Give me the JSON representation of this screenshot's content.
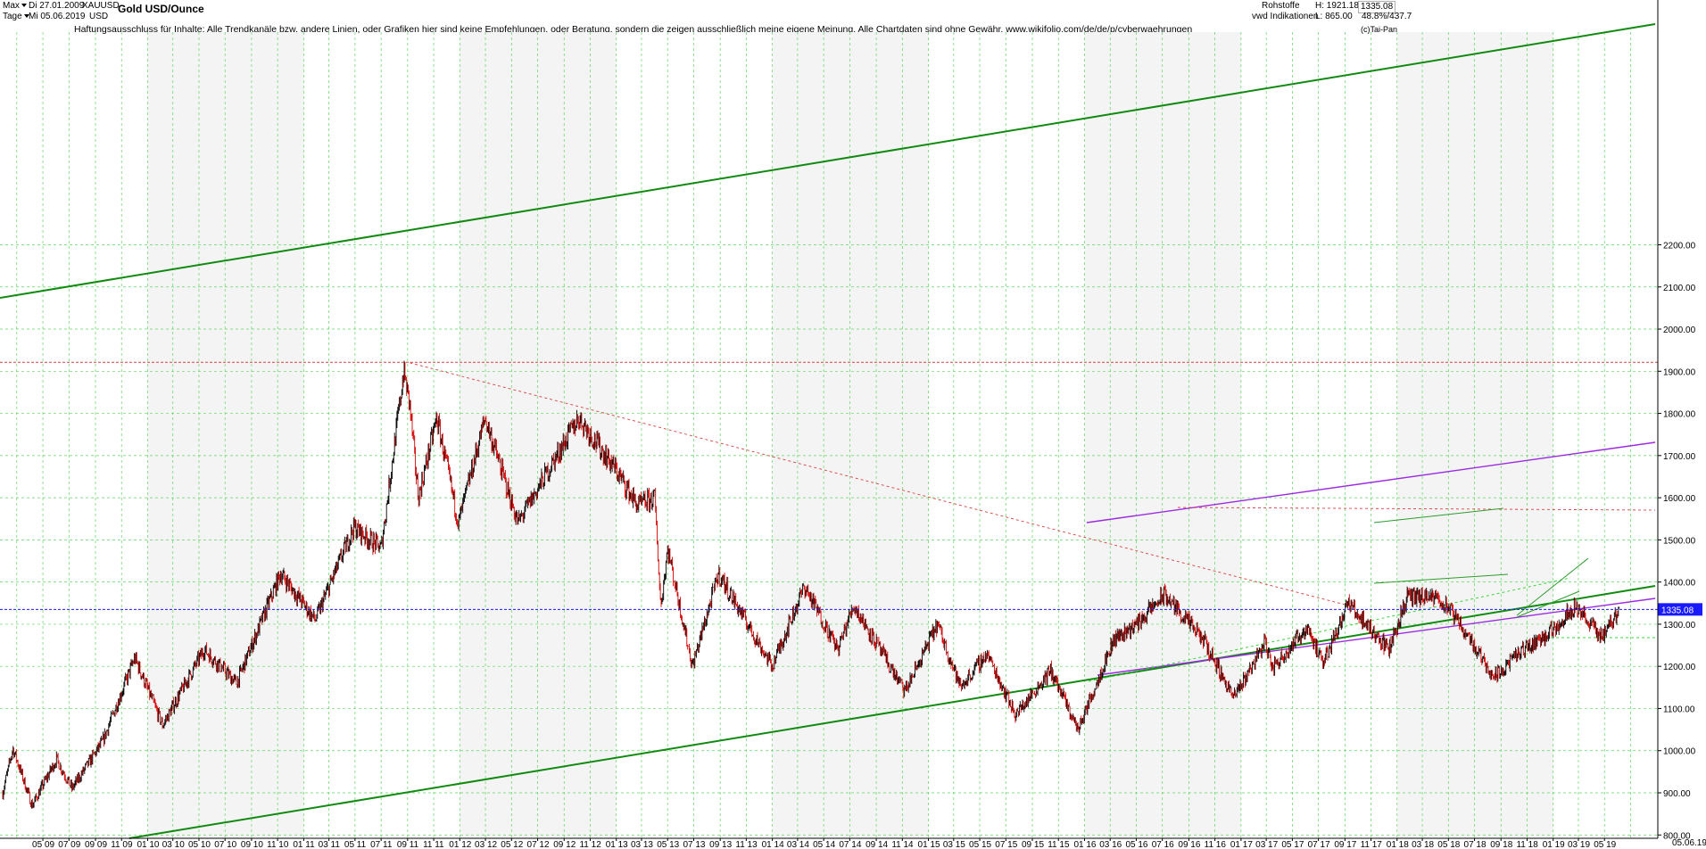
{
  "header": {
    "range_select": "Max",
    "interval_select": "Tage",
    "date_from": "Di 27.01.2009",
    "date_to": "Mi 05.06.2019",
    "symbol": "XAUUSD",
    "currency": "USD",
    "title": "Gold USD/Ounce",
    "category": "Rohstoffe",
    "source": "vwd Indikationen",
    "high": "H: 1921.18",
    "low": "L: 865.00",
    "last": "1335.08",
    "change": "48.8%/437.7",
    "copyright": "(c)Tai-Pan",
    "disclaimer": "Haftungsausschluss für Inhalte: Alle Trendkanäle bzw. andere Linien, oder Grafiken hier sind keine Empfehlungen, oder Beratung, sondern die zeigen ausschließlich meine eigene Meinung. Alle Chartdaten sind ohne Gewähr.  www.wikifolio.com/de/de/p/cyberwaehrungen",
    "end_date": "05.06.19"
  },
  "colors": {
    "price_up": "#000000",
    "price_down": "#d40000",
    "channel_green": "#118a11",
    "channel_purple": "#9b2be0",
    "last_price_line": "#1a1aff",
    "peak_line": "#d84040",
    "grid": "#5cd65c",
    "shade": "#f4f4f4"
  },
  "chart_data": {
    "type": "line",
    "title": "Gold USD/Ounce",
    "ylim": [
      760,
      2400
    ],
    "yticks": [
      800,
      900,
      1000,
      1100,
      1200,
      1300,
      1400,
      1500,
      1600,
      1700,
      1800,
      1900,
      2000,
      2100,
      2200
    ],
    "x_start": "2009-01-27",
    "x_end": "2019-06-05",
    "last_price": 1335.08,
    "peak_level": 1921.18,
    "grid": true,
    "x_tick_labels": [
      "05 09",
      "07 09",
      "09 09",
      "11 09",
      "01 10",
      "03 10",
      "05 10",
      "07 10",
      "09 10",
      "11 10",
      "01 11",
      "03 11",
      "05 11",
      "07 11",
      "09 11",
      "11 11",
      "01 12",
      "03 12",
      "05 12",
      "07 12",
      "09 12",
      "11 12",
      "01 13",
      "03 13",
      "05 13",
      "07 13",
      "09 13",
      "11 13",
      "01 14",
      "03 14",
      "05 14",
      "07 14",
      "09 14",
      "11 14",
      "01 15",
      "03 15",
      "05 15",
      "07 15",
      "09 15",
      "11 15",
      "01 16",
      "03 16",
      "05 16",
      "07 16",
      "09 16",
      "11 16",
      "01 17",
      "03 17",
      "05 17",
      "07 17",
      "09 17",
      "11 17",
      "01 18",
      "03 18",
      "05 18",
      "07 18",
      "09 18",
      "11 18",
      "01 19",
      "03 19",
      "05 19"
    ],
    "series": [
      {
        "x": [
          "2009-01-27",
          "2009-02-20",
          "2009-04-06",
          "2009-06-02",
          "2009-07-08",
          "2009-09-17",
          "2009-12-02",
          "2010-02-05",
          "2010-05-13",
          "2010-07-28",
          "2010-11-08",
          "2011-01-28",
          "2011-04-28",
          "2011-07-01",
          "2011-08-23",
          "2011-09-06",
          "2011-09-26",
          "2011-11-08",
          "2011-12-29",
          "2012-02-29",
          "2012-05-16",
          "2012-10-05",
          "2013-01-04",
          "2013-02-20",
          "2013-04-01",
          "2013-04-15",
          "2013-05-01",
          "2013-06-28",
          "2013-08-28",
          "2013-12-31",
          "2014-03-17",
          "2014-06-03",
          "2014-07-10",
          "2014-11-07",
          "2015-01-22",
          "2015-03-17",
          "2015-05-18",
          "2015-07-24",
          "2015-10-14",
          "2015-12-17",
          "2016-03-10",
          "2016-05-02",
          "2016-07-06",
          "2016-10-07",
          "2016-12-15",
          "2017-02-27",
          "2017-03-15",
          "2017-06-06",
          "2017-07-10",
          "2017-09-08",
          "2017-12-12",
          "2018-01-25",
          "2018-04-11",
          "2018-06-01",
          "2018-08-16",
          "2018-10-11",
          "2018-12-31",
          "2019-02-20",
          "2019-04-23",
          "2019-06-05"
        ],
        "y": [
          900,
          1005,
          870,
          980,
          910,
          1020,
          1220,
          1060,
          1240,
          1160,
          1420,
          1310,
          1530,
          1480,
          1900,
          1820,
          1600,
          1790,
          1540,
          1790,
          1540,
          1790,
          1660,
          1580,
          1600,
          1340,
          1480,
          1200,
          1420,
          1200,
          1390,
          1240,
          1345,
          1140,
          1300,
          1150,
          1230,
          1085,
          1190,
          1050,
          1265,
          1300,
          1370,
          1260,
          1125,
          1260,
          1195,
          1295,
          1205,
          1350,
          1240,
          1365,
          1360,
          1295,
          1175,
          1230,
          1285,
          1345,
          1270,
          1335
        ]
      }
    ]
  }
}
